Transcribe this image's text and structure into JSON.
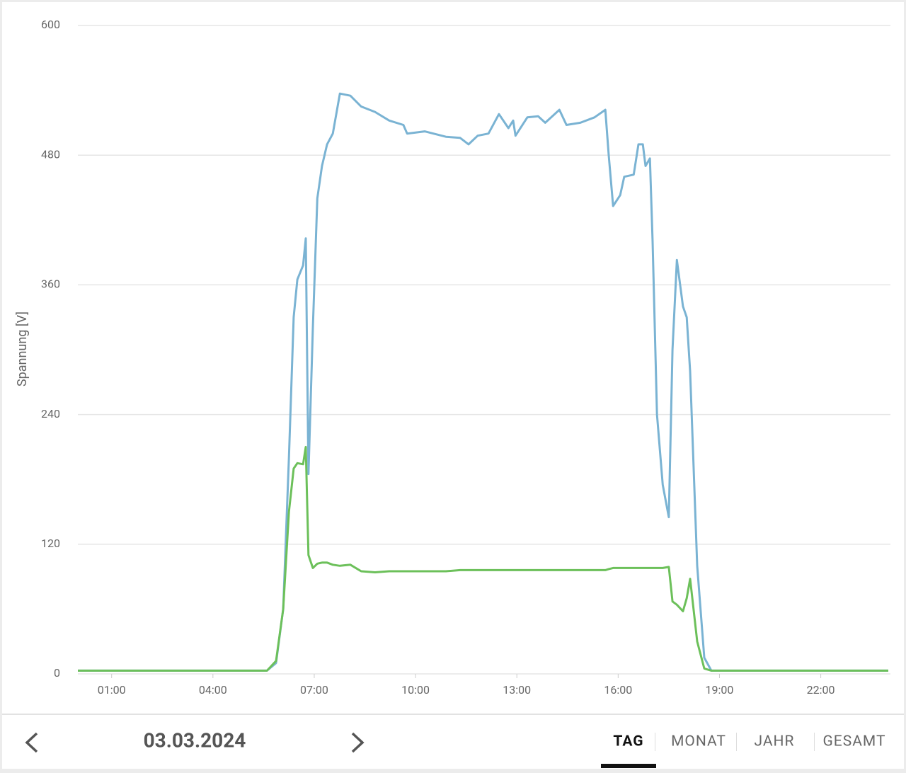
{
  "chart_data": {
    "type": "line",
    "ylabel": "Spannung [V]",
    "x": [
      0,
      5.6,
      5.87,
      6.08,
      6.25,
      6.39,
      6.5,
      6.67,
      6.75,
      6.83,
      6.96,
      7.09,
      7.23,
      7.38,
      7.55,
      7.76,
      8.07,
      8.39,
      8.8,
      9.22,
      9.64,
      9.75,
      10.27,
      10.9,
      11.32,
      11.57,
      11.84,
      12.16,
      12.47,
      12.75,
      12.89,
      12.96,
      13.31,
      13.63,
      13.84,
      14.26,
      14.47,
      14.88,
      15.3,
      15.62,
      15.72,
      15.85,
      16.06,
      16.18,
      16.46,
      16.6,
      16.73,
      16.81,
      16.94,
      17.02,
      17.15,
      17.32,
      17.5,
      17.61,
      17.74,
      17.92,
      18.03,
      18.13,
      18.34,
      18.55,
      18.76,
      24
    ],
    "series": [
      {
        "color": "#7ab3d3",
        "values": [
          3,
          3,
          10,
          60,
          200,
          330,
          365,
          378,
          403,
          185,
          320,
          440,
          470,
          490,
          500,
          537,
          535,
          525,
          520,
          512,
          508,
          500,
          502,
          497,
          496,
          490,
          498,
          500,
          518,
          505,
          512,
          498,
          515,
          516,
          510,
          522,
          508,
          510,
          515,
          522,
          480,
          433,
          443,
          460,
          462,
          490,
          490,
          470,
          477,
          400,
          240,
          175,
          145,
          300,
          383,
          340,
          330,
          280,
          100,
          15,
          3,
          3
        ]
      },
      {
        "color": "#6cc05a",
        "values": [
          3,
          3,
          12,
          60,
          150,
          190,
          195,
          194,
          210,
          110,
          98,
          102,
          103,
          103,
          101,
          100,
          101,
          95,
          94,
          95,
          95,
          95,
          95,
          95,
          96,
          96,
          96,
          96,
          96,
          96,
          96,
          96,
          96,
          96,
          96,
          96,
          96,
          96,
          96,
          96,
          97,
          98,
          98,
          98,
          98,
          98,
          98,
          98,
          98,
          98,
          98,
          98,
          99,
          67,
          64,
          58,
          70,
          88,
          30,
          5,
          3,
          3
        ]
      }
    ],
    "xlim": [
      0,
      24
    ],
    "xticks": [
      {
        "value": 1,
        "label": "01:00"
      },
      {
        "value": 4,
        "label": "04:00"
      },
      {
        "value": 7,
        "label": "07:00"
      },
      {
        "value": 10,
        "label": "10:00"
      },
      {
        "value": 13,
        "label": "13:00"
      },
      {
        "value": 16,
        "label": "16:00"
      },
      {
        "value": 19,
        "label": "19:00"
      },
      {
        "value": 22,
        "label": "22:00"
      }
    ],
    "ylim": [
      0,
      600
    ],
    "yticks": [
      0,
      120,
      240,
      360,
      480,
      600
    ],
    "grid": true
  },
  "nav": {
    "date": "03.03.2024",
    "tabs": [
      "TAG",
      "MONAT",
      "JAHR",
      "GESAMT"
    ],
    "active_tab": 0
  }
}
